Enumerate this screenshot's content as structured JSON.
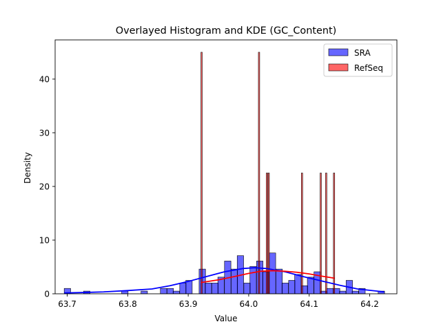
{
  "chart_data": {
    "type": "histogram",
    "title": "Overlayed Histogram and KDE (GC_Content)",
    "xlabel": "Value",
    "ylabel": "Density",
    "xlim": [
      63.68,
      64.245
    ],
    "ylim": [
      0,
      47.3
    ],
    "x_ticks": [
      63.7,
      63.8,
      63.9,
      64.0,
      64.1,
      64.2
    ],
    "y_ticks": [
      0,
      10,
      20,
      30,
      40
    ],
    "legend_position": "top-right",
    "series": [
      {
        "name": "SRA",
        "kind": "histogram",
        "color": "#0000ff",
        "edge_color": "#000000",
        "bin_width": 0.0106,
        "bins": [
          {
            "x0": 63.695,
            "density": 1.0
          },
          {
            "x0": 63.727,
            "density": 0.5
          },
          {
            "x0": 63.79,
            "density": 0.5
          },
          {
            "x0": 63.822,
            "density": 0.5
          },
          {
            "x0": 63.854,
            "density": 1.0
          },
          {
            "x0": 63.865,
            "density": 1.0
          },
          {
            "x0": 63.875,
            "density": 0.5
          },
          {
            "x0": 63.886,
            "density": 2.0
          },
          {
            "x0": 63.896,
            "density": 2.5
          },
          {
            "x0": 63.918,
            "density": 4.6
          },
          {
            "x0": 63.928,
            "density": 2.0
          },
          {
            "x0": 63.939,
            "density": 2.0
          },
          {
            "x0": 63.949,
            "density": 3.1
          },
          {
            "x0": 63.96,
            "density": 6.1
          },
          {
            "x0": 63.971,
            "density": 4.6
          },
          {
            "x0": 63.981,
            "density": 7.1
          },
          {
            "x0": 63.992,
            "density": 2.0
          },
          {
            "x0": 64.002,
            "density": 5.1
          },
          {
            "x0": 64.013,
            "density": 6.1
          },
          {
            "x0": 64.023,
            "density": 4.1
          },
          {
            "x0": 64.034,
            "density": 7.6
          },
          {
            "x0": 64.045,
            "density": 4.6
          },
          {
            "x0": 64.055,
            "density": 2.0
          },
          {
            "x0": 64.066,
            "density": 2.5
          },
          {
            "x0": 64.076,
            "density": 3.6
          },
          {
            "x0": 64.087,
            "density": 1.5
          },
          {
            "x0": 64.097,
            "density": 3.1
          },
          {
            "x0": 64.108,
            "density": 4.1
          },
          {
            "x0": 64.119,
            "density": 0.5
          },
          {
            "x0": 64.129,
            "density": 1.0
          },
          {
            "x0": 64.14,
            "density": 1.0
          },
          {
            "x0": 64.15,
            "density": 0.5
          },
          {
            "x0": 64.161,
            "density": 2.5
          },
          {
            "x0": 64.171,
            "density": 0.5
          },
          {
            "x0": 64.182,
            "density": 1.0
          },
          {
            "x0": 64.214,
            "density": 0.5
          }
        ],
        "kde": {
          "x": [
            63.695,
            63.73,
            63.76,
            63.8,
            63.84,
            63.87,
            63.9,
            63.93,
            63.96,
            63.99,
            64.01,
            64.03,
            64.06,
            64.09,
            64.12,
            64.15,
            64.18,
            64.224
          ],
          "y": [
            0.15,
            0.25,
            0.35,
            0.6,
            0.9,
            1.5,
            2.3,
            3.2,
            4.1,
            4.7,
            4.85,
            4.7,
            4.1,
            3.2,
            2.4,
            1.6,
            0.9,
            0.35
          ]
        }
      },
      {
        "name": "RefSeq",
        "kind": "histogram",
        "color": "#ff0000",
        "edge_color": "#000000",
        "bin_width": 0.0022,
        "bins": [
          {
            "x0": 63.921,
            "density": 45
          },
          {
            "x0": 64.016,
            "density": 45
          },
          {
            "x0": 64.029,
            "density": 22.5
          },
          {
            "x0": 64.032,
            "density": 22.5
          },
          {
            "x0": 64.087,
            "density": 22.5
          },
          {
            "x0": 64.118,
            "density": 22.5
          },
          {
            "x0": 64.127,
            "density": 22.5
          },
          {
            "x0": 64.14,
            "density": 22.5
          }
        ],
        "kde": {
          "x": [
            63.921,
            63.95,
            63.98,
            64.0,
            64.02,
            64.04,
            64.06,
            64.08,
            64.1,
            64.12,
            64.142
          ],
          "y": [
            2.1,
            2.6,
            3.3,
            3.8,
            4.2,
            4.3,
            4.2,
            4.0,
            3.7,
            3.3,
            2.9
          ]
        }
      }
    ]
  }
}
